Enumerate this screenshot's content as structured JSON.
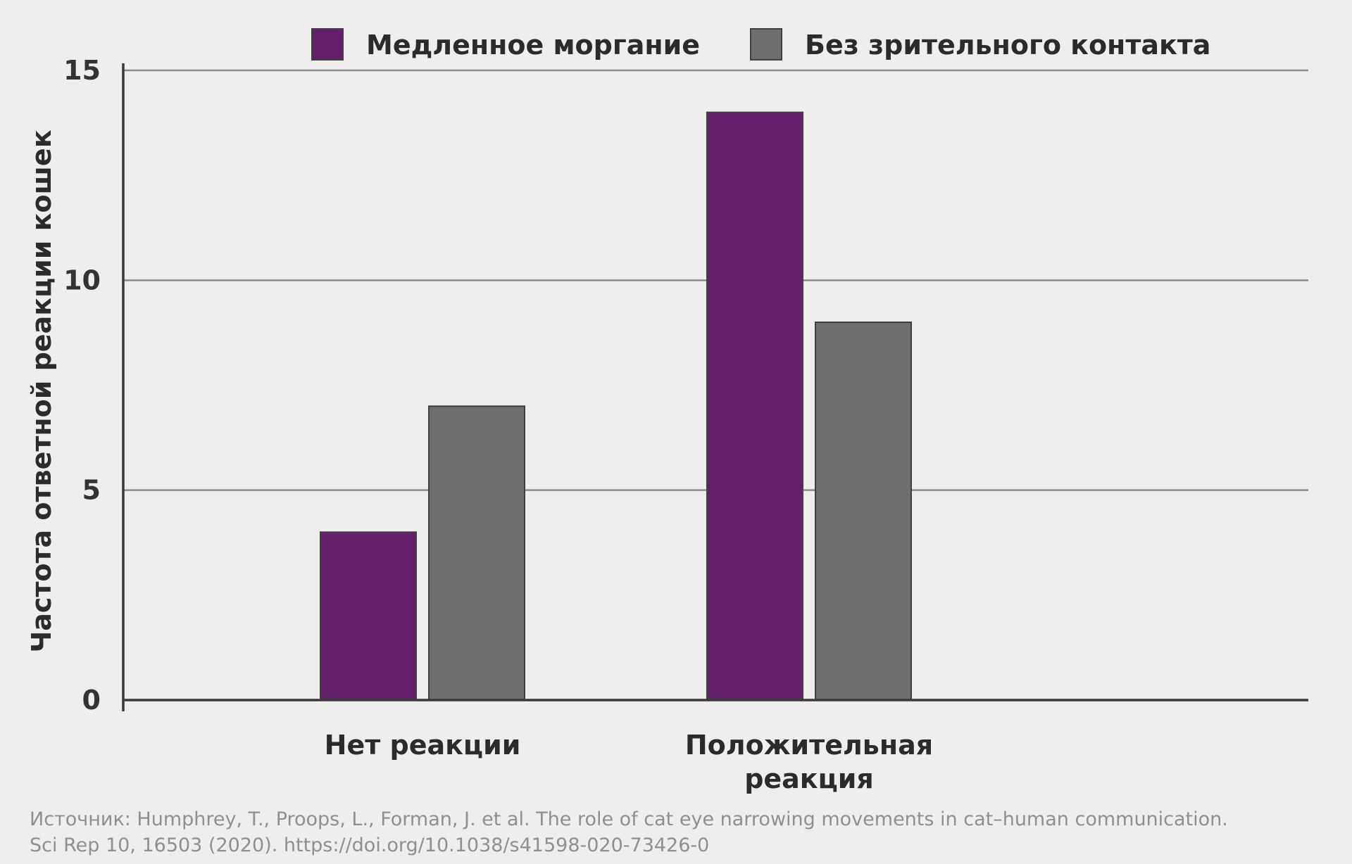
{
  "chart_data": {
    "type": "bar",
    "categories": [
      [
        "Нет реакции"
      ],
      [
        "Положительная",
        "реакция"
      ]
    ],
    "series": [
      {
        "name": "Медленное моргание",
        "values": [
          4,
          14
        ],
        "color": "#631f69"
      },
      {
        "name": "Без зрительного контакта",
        "values": [
          7,
          9
        ],
        "color": "#6d6e6d"
      }
    ],
    "ylabel": "Частота ответной реакции кошек",
    "xlabel": "",
    "ylim": [
      0,
      15
    ],
    "yticks": [
      0,
      5,
      10,
      15
    ],
    "grid": true,
    "legend_position": "top"
  },
  "source": {
    "line1": "Источник: Humphrey, T., Proops, L., Forman, J. et al. The role of cat eye narrowing movements in cat–human communication.",
    "line2": "Sci Rep 10, 16503 (2020). https://doi.org/10.1038/s41598-020-73426-0"
  },
  "colors": {
    "background": "#efeded",
    "grid": "#8a8a8a",
    "axis": "#3a3a3a",
    "bar_outline": "#3f3f3f"
  }
}
